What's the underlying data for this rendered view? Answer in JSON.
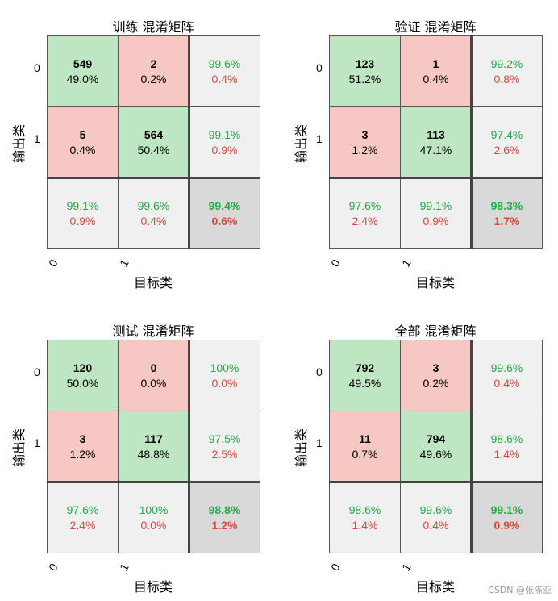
{
  "chart_data": [
    {
      "type": "heatmap",
      "title": "训练 混淆矩阵",
      "xlabel": "目标类",
      "ylabel": "输出类",
      "xticks": [
        "0",
        "1"
      ],
      "yticks": [
        "0",
        "1"
      ],
      "cells": [
        [
          {
            "count": "549",
            "pct": "49.0%"
          },
          {
            "count": "2",
            "pct": "0.2%"
          },
          {
            "top": "99.6%",
            "bottom": "0.4%"
          }
        ],
        [
          {
            "count": "5",
            "pct": "0.4%"
          },
          {
            "count": "564",
            "pct": "50.4%"
          },
          {
            "top": "99.1%",
            "bottom": "0.9%"
          }
        ],
        [
          {
            "top": "99.1%",
            "bottom": "0.9%"
          },
          {
            "top": "99.6%",
            "bottom": "0.4%"
          },
          {
            "top": "99.4%",
            "bottom": "0.6%"
          }
        ]
      ]
    },
    {
      "type": "heatmap",
      "title": "验证 混淆矩阵",
      "xlabel": "目标类",
      "ylabel": "输出类",
      "xticks": [
        "0",
        "1"
      ],
      "yticks": [
        "0",
        "1"
      ],
      "cells": [
        [
          {
            "count": "123",
            "pct": "51.2%"
          },
          {
            "count": "1",
            "pct": "0.4%"
          },
          {
            "top": "99.2%",
            "bottom": "0.8%"
          }
        ],
        [
          {
            "count": "3",
            "pct": "1.2%"
          },
          {
            "count": "113",
            "pct": "47.1%"
          },
          {
            "top": "97.4%",
            "bottom": "2.6%"
          }
        ],
        [
          {
            "top": "97.6%",
            "bottom": "2.4%"
          },
          {
            "top": "99.1%",
            "bottom": "0.9%"
          },
          {
            "top": "98.3%",
            "bottom": "1.7%"
          }
        ]
      ]
    },
    {
      "type": "heatmap",
      "title": "测试 混淆矩阵",
      "xlabel": "目标类",
      "ylabel": "输出类",
      "xticks": [
        "0",
        "1"
      ],
      "yticks": [
        "0",
        "1"
      ],
      "cells": [
        [
          {
            "count": "120",
            "pct": "50.0%"
          },
          {
            "count": "0",
            "pct": "0.0%"
          },
          {
            "top": "100%",
            "bottom": "0.0%"
          }
        ],
        [
          {
            "count": "3",
            "pct": "1.2%"
          },
          {
            "count": "117",
            "pct": "48.8%"
          },
          {
            "top": "97.5%",
            "bottom": "2.5%"
          }
        ],
        [
          {
            "top": "97.6%",
            "bottom": "2.4%"
          },
          {
            "top": "100%",
            "bottom": "0.0%"
          },
          {
            "top": "98.8%",
            "bottom": "1.2%"
          }
        ]
      ]
    },
    {
      "type": "heatmap",
      "title": "全部 混淆矩阵",
      "xlabel": "目标类",
      "ylabel": "输出类",
      "xticks": [
        "0",
        "1"
      ],
      "yticks": [
        "0",
        "1"
      ],
      "cells": [
        [
          {
            "count": "792",
            "pct": "49.5%"
          },
          {
            "count": "3",
            "pct": "0.2%"
          },
          {
            "top": "99.6%",
            "bottom": "0.4%"
          }
        ],
        [
          {
            "count": "11",
            "pct": "0.7%"
          },
          {
            "count": "794",
            "pct": "49.6%"
          },
          {
            "top": "98.6%",
            "bottom": "1.4%"
          }
        ],
        [
          {
            "top": "98.6%",
            "bottom": "1.4%"
          },
          {
            "top": "99.6%",
            "bottom": "0.4%"
          },
          {
            "top": "99.1%",
            "bottom": "0.9%"
          }
        ]
      ]
    }
  ],
  "colors": {
    "correct_bg": "#bfe6c3",
    "wrong_bg": "#f6c7c3",
    "summary_bg": "#f0f0f0",
    "overall_bg": "#d9d9d9",
    "good_text": "#2aa84a",
    "bad_text": "#e8433a"
  },
  "watermark": "CSDN @张陈亚"
}
